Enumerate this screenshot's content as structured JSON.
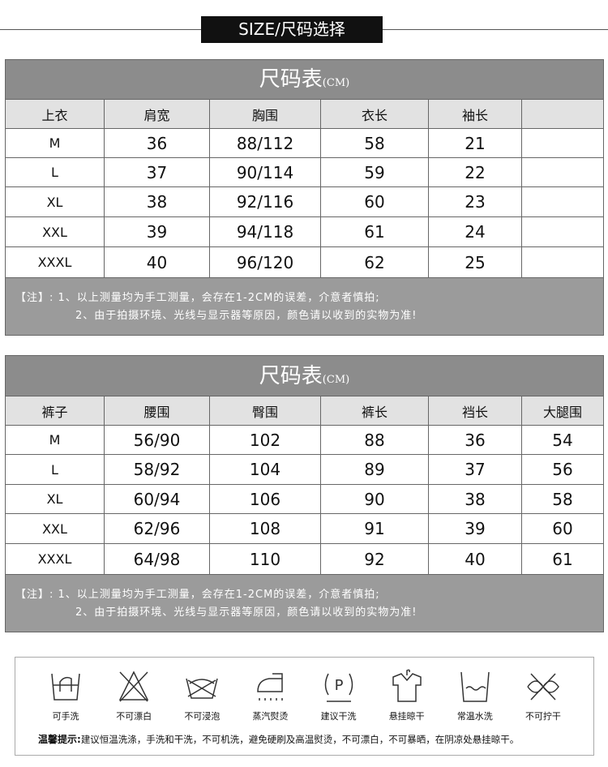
{
  "header": {
    "label": "SIZE/尺码选择"
  },
  "tables": [
    {
      "title": "尺码表",
      "unit": "(CM)",
      "headers": [
        "上衣",
        "肩宽",
        "胸围",
        "衣长",
        "袖长",
        ""
      ],
      "rows": [
        [
          "M",
          "36",
          "88/112",
          "58",
          "21",
          ""
        ],
        [
          "L",
          "37",
          "90/114",
          "59",
          "22",
          ""
        ],
        [
          "XL",
          "38",
          "92/116",
          "60",
          "23",
          ""
        ],
        [
          "XXL",
          "39",
          "94/118",
          "61",
          "24",
          ""
        ],
        [
          "XXXL",
          "40",
          "96/120",
          "62",
          "25",
          ""
        ]
      ],
      "notes": [
        "【注】: 1、以上测量均为手工测量，会存在1-2CM的误差，介意者慎拍;",
        "2、由于拍摄环境、光线与显示器等原因，颜色请以收到的实物为准!"
      ]
    },
    {
      "title": "尺码表",
      "unit": "(CM)",
      "headers": [
        "裤子",
        "腰围",
        "臀围",
        "裤长",
        "裆长",
        "大腿围"
      ],
      "rows": [
        [
          "M",
          "56/90",
          "102",
          "88",
          "36",
          "54"
        ],
        [
          "L",
          "58/92",
          "104",
          "89",
          "37",
          "56"
        ],
        [
          "XL",
          "60/94",
          "106",
          "90",
          "38",
          "58"
        ],
        [
          "XXL",
          "62/96",
          "108",
          "91",
          "39",
          "60"
        ],
        [
          "XXXL",
          "64/98",
          "110",
          "92",
          "40",
          "61"
        ]
      ],
      "notes": [
        "【注】: 1、以上测量均为手工测量，会存在1-2CM的误差，介意者慎拍;",
        "2、由于拍摄环境、光线与显示器等原因，颜色请以收到的实物为准!"
      ]
    }
  ],
  "care": {
    "items": [
      {
        "icon": "hand-wash-icon",
        "label": "可手洗"
      },
      {
        "icon": "no-bleach-icon",
        "label": "不可漂白"
      },
      {
        "icon": "no-soak-icon",
        "label": "不可浸泡"
      },
      {
        "icon": "steam-iron-icon",
        "label": "蒸汽熨烫"
      },
      {
        "icon": "dry-clean-icon",
        "label": "建议干洗"
      },
      {
        "icon": "hang-dry-icon",
        "label": "悬挂晾干"
      },
      {
        "icon": "normal-temp-wash-icon",
        "label": "常温水洗"
      },
      {
        "icon": "no-wring-icon",
        "label": "不可拧干"
      }
    ],
    "tip_label": "温馨提示:",
    "tip_text": "建议恒温洗涤，手洗和干洗，不可机洗，避免硬刷及高温熨烫，不可漂白，不可暴晒，在阴凉处悬挂晾干。"
  }
}
